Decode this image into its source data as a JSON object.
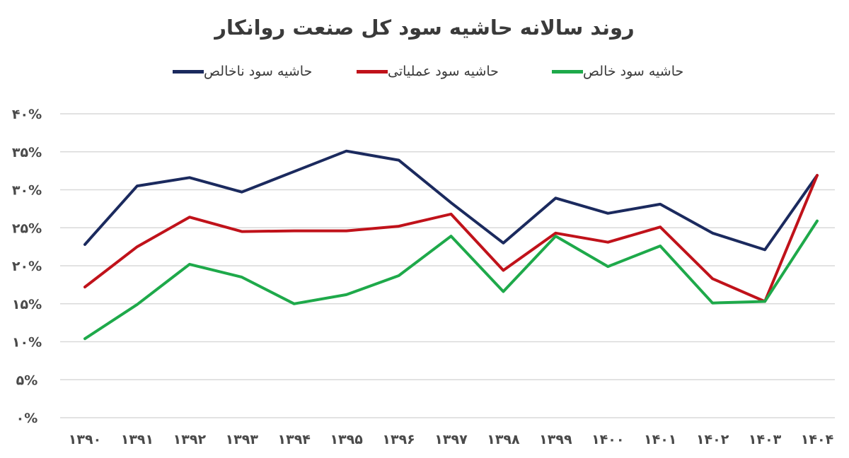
{
  "chart_data": {
    "type": "line",
    "title": "روند سالانه حاشیه سود کل صنعت روانکار",
    "categories": [
      "۱۳۹۰",
      "۱۳۹۱",
      "۱۳۹۲",
      "۱۳۹۳",
      "۱۳۹۴",
      "۱۳۹۵",
      "۱۳۹۶",
      "۱۳۹۷",
      "۱۳۹۸",
      "۱۳۹۹",
      "۱۴۰۰",
      "۱۴۰۱",
      "۱۴۰۲",
      "۱۴۰۳",
      "۱۴۰۴"
    ],
    "y_tick_labels": [
      "۰%",
      "۵%",
      "۱۰%",
      "۱۵%",
      "۲۰%",
      "۲۵%",
      "۳۰%",
      "۳۵%",
      "۴۰%"
    ],
    "ylim": [
      0,
      40
    ],
    "y_ticks": [
      0,
      5,
      10,
      15,
      20,
      25,
      30,
      35,
      40
    ],
    "grid": true,
    "legend_position": "top",
    "series": [
      {
        "name": "حاشیه سود ناخالص",
        "color": "#1b2a5e",
        "values": [
          22.8,
          30.5,
          31.6,
          29.7,
          32.4,
          35.1,
          33.9,
          28.3,
          23.0,
          28.9,
          26.9,
          28.1,
          24.3,
          22.1,
          31.9
        ]
      },
      {
        "name": "حاشیه سود عملیاتی",
        "color": "#c0121a",
        "values": [
          17.2,
          22.5,
          26.4,
          24.5,
          24.6,
          24.6,
          25.2,
          26.8,
          19.4,
          24.3,
          23.1,
          25.1,
          18.3,
          15.3,
          31.9
        ]
      },
      {
        "name": "حاشیه سود خالص",
        "color": "#1ea94a",
        "values": [
          10.4,
          14.9,
          20.2,
          18.5,
          15.0,
          16.2,
          18.7,
          23.9,
          16.6,
          23.9,
          19.9,
          22.6,
          15.1,
          15.3,
          25.9
        ]
      }
    ]
  }
}
